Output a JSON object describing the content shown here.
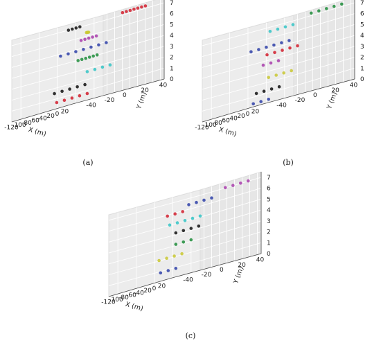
{
  "figure": {
    "captions": [
      "(a)",
      "(b)",
      "(c)"
    ]
  },
  "chart_data": [
    {
      "type": "scatter",
      "subplot": "(a)",
      "xlabel": "X (m)",
      "ylabel": "Y (m)",
      "zlabel": "",
      "xlim": [
        -130,
        30
      ],
      "ylim": [
        -50,
        50
      ],
      "zlim": [
        0,
        7.5
      ],
      "xticks": [
        "-120",
        "-100",
        "-80",
        "-60",
        "-40",
        "-20",
        "0",
        "20"
      ],
      "yticks": [
        "-40",
        "-20",
        "0",
        "20",
        "40"
      ],
      "zticks": [
        "0",
        "1",
        "2",
        "3",
        "4",
        "5",
        "6",
        "7"
      ],
      "grid": true,
      "colors": [
        "#2e3fa8",
        "#d21e2e",
        "#1d8c3a",
        "#111111",
        "#c9c832",
        "#33c4c6",
        "#a83cab"
      ],
      "series": [
        {
          "color": "#d21e2e",
          "x": [
            -60,
            -50,
            -40,
            -30,
            -20,
            -10,
            0
          ],
          "y": [
            42,
            42,
            42,
            42,
            42,
            42,
            42
          ],
          "z": [
            7.2,
            7.2,
            7.2,
            7.2,
            7.2,
            7.2,
            7.2
          ]
        },
        {
          "color": "#111111",
          "x": [
            -10,
            0,
            10,
            20
          ],
          "y": [
            -38,
            -38,
            -38,
            -38
          ],
          "z": [
            6.9,
            6.9,
            6.9,
            6.9
          ]
        },
        {
          "color": "#c9c832",
          "x": [
            -120,
            -110,
            -100,
            -90
          ],
          "y": [
            30,
            25,
            20,
            15
          ],
          "z": [
            6.3,
            6.3,
            6.3,
            6.3
          ]
        },
        {
          "color": "#a83cab",
          "x": [
            -80,
            -70,
            -60,
            -50,
            -40
          ],
          "y": [
            5,
            5,
            5,
            5,
            5
          ],
          "z": [
            5.7,
            5.7,
            5.7,
            5.7,
            5.7
          ]
        },
        {
          "color": "#2e3fa8",
          "x": [
            -110,
            -90,
            -70,
            -50,
            -30,
            -10,
            10
          ],
          "y": [
            -5,
            -5,
            -5,
            -5,
            -5,
            -5,
            -5
          ],
          "z": [
            4.8,
            4.8,
            4.8,
            4.8,
            4.8,
            4.8,
            4.8
          ]
        },
        {
          "color": "#1d8c3a",
          "x": [
            -40,
            -30,
            -20,
            -10,
            0,
            10
          ],
          "y": [
            -15,
            -15,
            -15,
            -15,
            -15,
            -15
          ],
          "z": [
            3.9,
            3.9,
            3.9,
            3.9,
            3.9,
            3.9
          ]
        },
        {
          "color": "#33c4c6",
          "x": [
            -100,
            -80,
            -60,
            -40
          ],
          "y": [
            20,
            20,
            20,
            20
          ],
          "z": [
            2.7,
            2.7,
            2.7,
            2.7
          ]
        },
        {
          "color": "#111111",
          "x": [
            -90,
            -70,
            -50,
            -30,
            -10
          ],
          "y": [
            -20,
            -20,
            -20,
            -20,
            -20
          ],
          "z": [
            1.5,
            1.5,
            1.5,
            1.5,
            1.5
          ]
        },
        {
          "color": "#d21e2e",
          "x": [
            -60,
            -40,
            -20,
            0,
            20
          ],
          "y": [
            -30,
            -30,
            -30,
            -30,
            -30
          ],
          "z": [
            0.6,
            0.6,
            0.6,
            0.6,
            0.6
          ]
        }
      ]
    },
    {
      "type": "scatter",
      "subplot": "(b)",
      "xlabel": "X (m)",
      "ylabel": "Y (m)",
      "zlabel": "",
      "xlim": [
        -130,
        30
      ],
      "ylim": [
        -50,
        50
      ],
      "zlim": [
        0,
        7.5
      ],
      "xticks": [
        "-120",
        "-100",
        "-80",
        "-60",
        "-40",
        "-20",
        "0",
        "20"
      ],
      "yticks": [
        "-40",
        "-20",
        "0",
        "20",
        "40"
      ],
      "zticks": [
        "0",
        "1",
        "2",
        "3",
        "4",
        "5",
        "6",
        "7"
      ],
      "grid": true,
      "colors": [
        "#2e3fa8",
        "#d21e2e",
        "#1d8c3a",
        "#111111",
        "#c9c832",
        "#33c4c6",
        "#a83cab"
      ],
      "series": [
        {
          "color": "#1d8c3a",
          "x": [
            -60,
            -40,
            -20,
            0,
            20
          ],
          "y": [
            40,
            40,
            40,
            40,
            40
          ],
          "z": [
            7.2,
            7.2,
            7.2,
            7.2,
            7.2
          ]
        },
        {
          "color": "#33c4c6",
          "x": [
            -120,
            -100,
            -80,
            -60
          ],
          "y": [
            20,
            20,
            20,
            20
          ],
          "z": [
            6.6,
            6.6,
            6.6,
            6.6
          ]
        },
        {
          "color": "#2e3fa8",
          "x": [
            -110,
            -90,
            -70,
            -50,
            -30,
            -10
          ],
          "y": [
            -5,
            -5,
            -5,
            -5,
            -5,
            -5
          ],
          "z": [
            5.2,
            5.2,
            5.2,
            5.2,
            5.2,
            5.2
          ]
        },
        {
          "color": "#d21e2e",
          "x": [
            -80,
            -60,
            -40,
            -20,
            0
          ],
          "y": [
            0,
            0,
            0,
            0,
            0
          ],
          "z": [
            4.5,
            4.5,
            4.5,
            4.5,
            4.5
          ]
        },
        {
          "color": "#a83cab",
          "x": [
            -30,
            -10,
            10
          ],
          "y": [
            -25,
            -25,
            -25
          ],
          "z": [
            3.6,
            3.6,
            3.6
          ]
        },
        {
          "color": "#c9c832",
          "x": [
            -100,
            -80,
            -60,
            -40
          ],
          "y": [
            10,
            10,
            10,
            10
          ],
          "z": [
            2.4,
            2.4,
            2.4,
            2.4
          ]
        },
        {
          "color": "#111111",
          "x": [
            -60,
            -40,
            -20,
            0
          ],
          "y": [
            -20,
            -20,
            -20,
            -20
          ],
          "z": [
            1.2,
            1.2,
            1.2,
            1.2
          ]
        },
        {
          "color": "#2e3fa8",
          "x": [
            -20,
            0,
            20
          ],
          "y": [
            -40,
            -40,
            -40
          ],
          "z": [
            0.3,
            0.3,
            0.3
          ]
        }
      ]
    },
    {
      "type": "scatter",
      "subplot": "(c)",
      "xlabel": "X (m)",
      "ylabel": "Y (m)",
      "zlabel": "",
      "xlim": [
        -130,
        30
      ],
      "ylim": [
        -50,
        50
      ],
      "zlim": [
        0,
        7.5
      ],
      "xticks": [
        "-120",
        "-100",
        "-80",
        "-60",
        "-40",
        "-20",
        "0",
        "20"
      ],
      "yticks": [
        "-40",
        "-20",
        "0",
        "20",
        "40"
      ],
      "zticks": [
        "0",
        "1",
        "2",
        "3",
        "4",
        "5",
        "6",
        "7"
      ],
      "grid": true,
      "colors": [
        "#2e3fa8",
        "#d21e2e",
        "#1d8c3a",
        "#111111",
        "#c9c832",
        "#33c4c6",
        "#a83cab"
      ],
      "series": [
        {
          "color": "#a83cab",
          "x": [
            -40,
            -20,
            0,
            20
          ],
          "y": [
            40,
            40,
            40,
            40
          ],
          "z": [
            7.0,
            7.0,
            7.0,
            7.0
          ]
        },
        {
          "color": "#2e3fa8",
          "x": [
            -100,
            -80,
            -60,
            -40
          ],
          "y": [
            25,
            25,
            25,
            25
          ],
          "z": [
            6.4,
            6.4,
            6.4,
            6.4
          ]
        },
        {
          "color": "#d21e2e",
          "x": [
            -120,
            -100,
            -80
          ],
          "y": [
            10,
            10,
            10
          ],
          "z": [
            5.9,
            5.9,
            5.9
          ]
        },
        {
          "color": "#33c4c6",
          "x": [
            -90,
            -70,
            -50,
            -30,
            -10
          ],
          "y": [
            0,
            0,
            0,
            0,
            0
          ],
          "z": [
            5.0,
            5.0,
            5.0,
            5.0,
            5.0
          ]
        },
        {
          "color": "#111111",
          "x": [
            -50,
            -30,
            -10,
            10
          ],
          "y": [
            -10,
            -10,
            -10,
            -10
          ],
          "z": [
            4.1,
            4.1,
            4.1,
            4.1
          ]
        },
        {
          "color": "#1d8c3a",
          "x": [
            -110,
            -90,
            -70
          ],
          "y": [
            15,
            15,
            15
          ],
          "z": [
            3.1,
            3.1,
            3.1
          ]
        },
        {
          "color": "#c9c832",
          "x": [
            -70,
            -50,
            -30,
            -10
          ],
          "y": [
            -20,
            -20,
            -20,
            -20
          ],
          "z": [
            2.0,
            2.0,
            2.0,
            2.0
          ]
        },
        {
          "color": "#2e3fa8",
          "x": [
            -30,
            -10,
            10
          ],
          "y": [
            -35,
            -35,
            -35
          ],
          "z": [
            0.8,
            0.8,
            0.8
          ]
        }
      ]
    }
  ]
}
